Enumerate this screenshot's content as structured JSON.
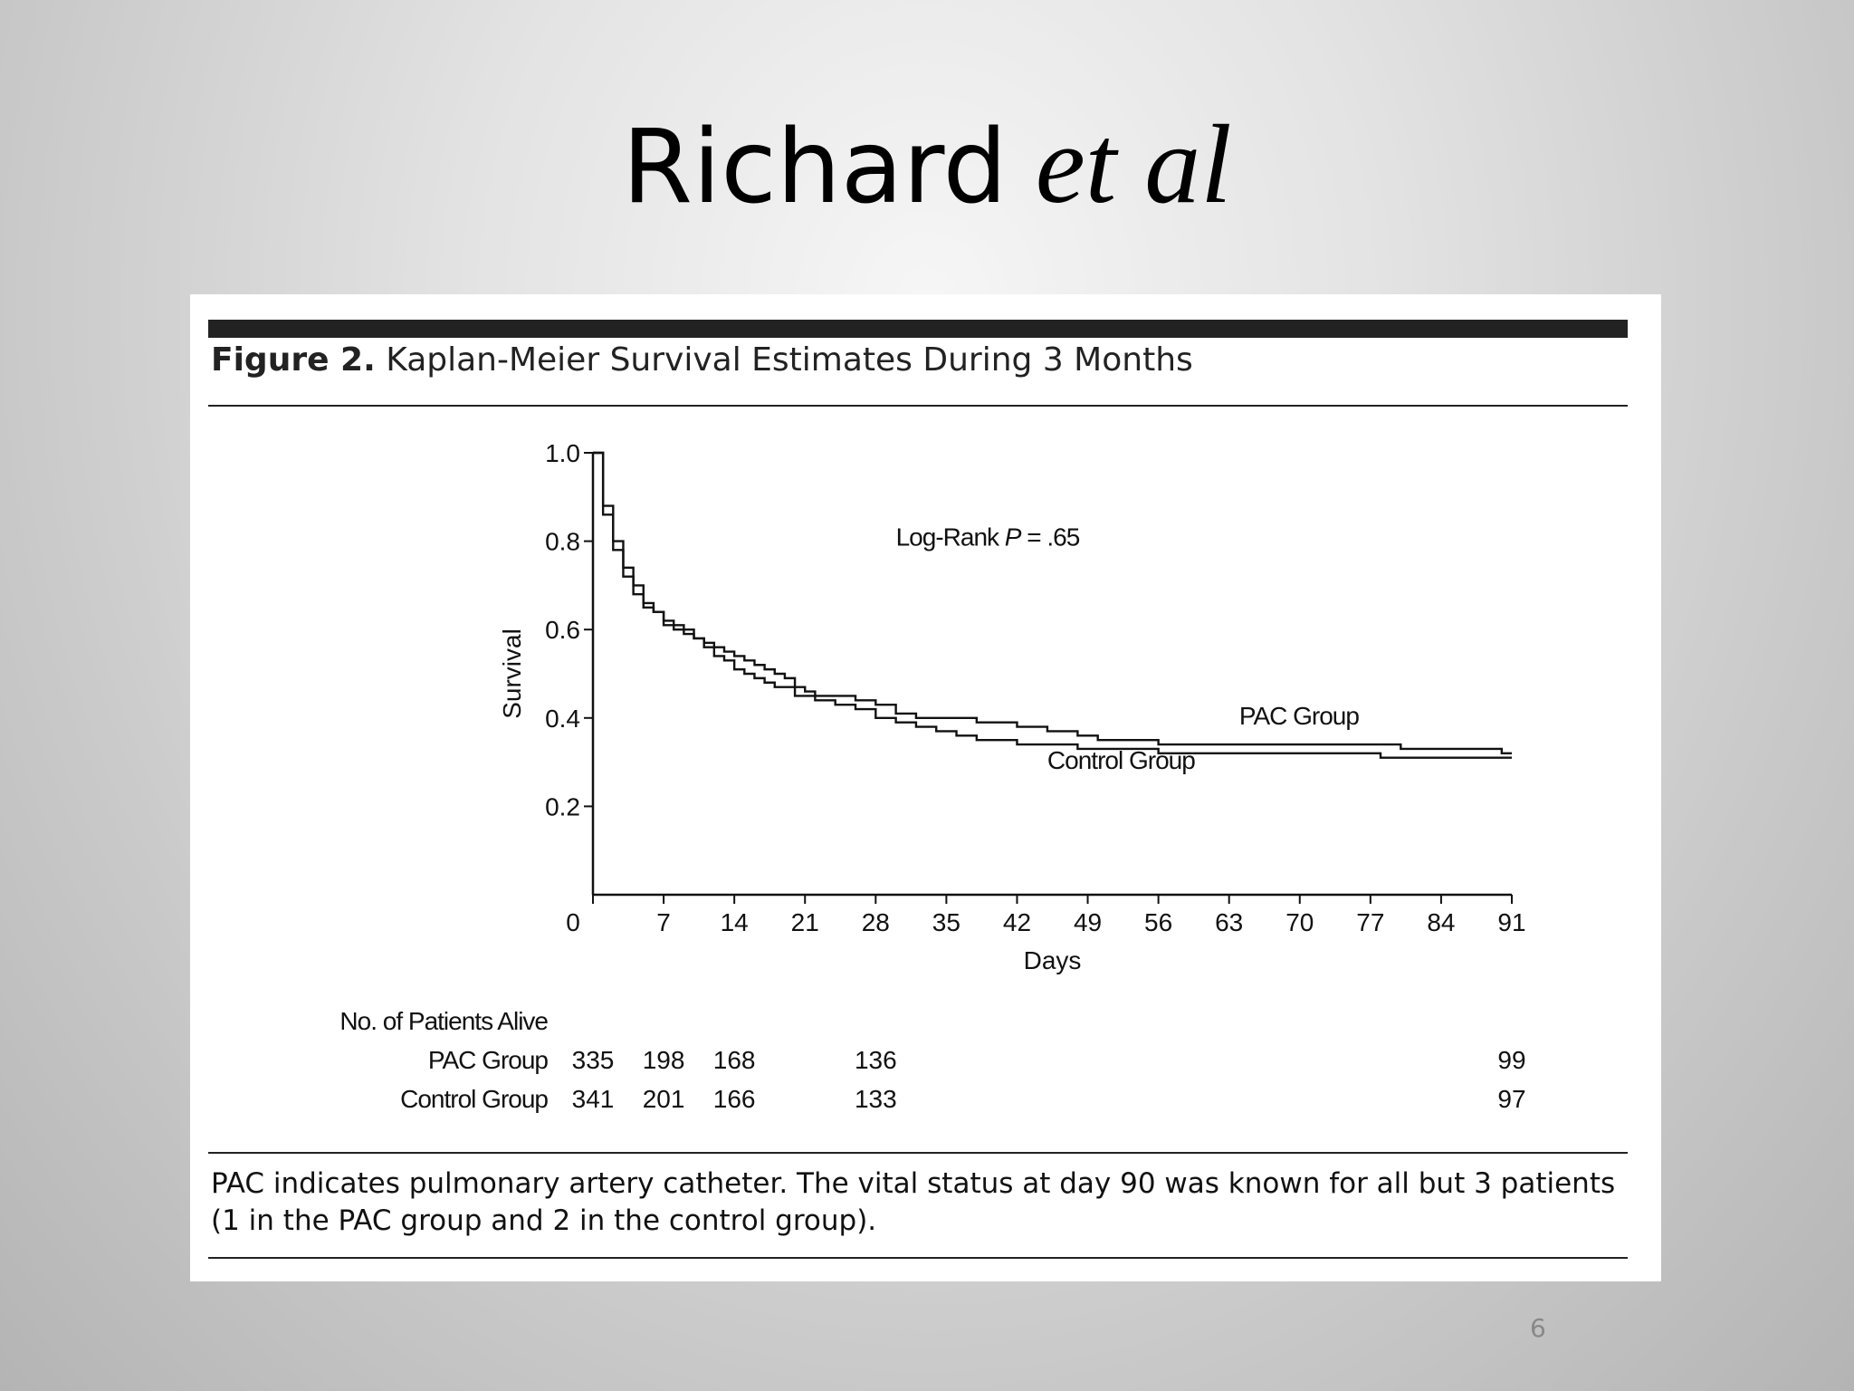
{
  "slide": {
    "title_main": "Richard",
    "title_italic": "et al",
    "page_number": "6"
  },
  "figure": {
    "caption_label": "Figure 2.",
    "caption_text": "Kaplan-Meier Survival Estimates During 3 Months",
    "footnote": "PAC indicates pulmonary artery catheter. The vital status at day 90 was known for all but 3 patients (1 in the PAC group and 2 in the control group)."
  },
  "chart_data": {
    "type": "line",
    "step": true,
    "title": "Kaplan-Meier Survival Estimates During 3 Months",
    "xlabel": "Days",
    "ylabel": "Survival",
    "xlim": [
      0,
      91
    ],
    "ylim": [
      0,
      1.0
    ],
    "x_ticks": [
      0,
      7,
      14,
      21,
      28,
      35,
      42,
      49,
      56,
      63,
      70,
      77,
      84,
      91
    ],
    "y_ticks": [
      0.2,
      0.4,
      0.6,
      0.8,
      1.0
    ],
    "y_tick_labels": [
      "0.2",
      "0.4",
      "0.6",
      "0.8",
      "1.0"
    ],
    "grid": false,
    "annotation": {
      "prefix": "Log-Rank ",
      "italic": "P",
      "suffix": " = .65",
      "x": 30,
      "y": 0.79
    },
    "series": [
      {
        "name": "PAC Group",
        "label_pos": {
          "x": 64,
          "y": 0.385
        },
        "x": [
          0,
          1,
          2,
          3,
          4,
          5,
          6,
          7,
          8,
          9,
          10,
          11,
          12,
          13,
          14,
          15,
          16,
          17,
          18,
          19,
          20,
          21,
          22,
          24,
          26,
          28,
          30,
          32,
          35,
          38,
          40,
          42,
          45,
          48,
          50,
          53,
          56,
          60,
          65,
          70,
          75,
          80,
          83,
          86,
          90,
          91
        ],
        "y": [
          1.0,
          0.88,
          0.8,
          0.74,
          0.7,
          0.66,
          0.64,
          0.62,
          0.61,
          0.6,
          0.58,
          0.57,
          0.56,
          0.55,
          0.54,
          0.53,
          0.52,
          0.51,
          0.5,
          0.49,
          0.47,
          0.46,
          0.45,
          0.45,
          0.44,
          0.43,
          0.41,
          0.4,
          0.4,
          0.39,
          0.39,
          0.38,
          0.37,
          0.36,
          0.35,
          0.35,
          0.34,
          0.34,
          0.34,
          0.34,
          0.34,
          0.33,
          0.33,
          0.33,
          0.32,
          0.32
        ]
      },
      {
        "name": "Control Group",
        "label_pos": {
          "x": 45,
          "y": 0.285
        },
        "x": [
          0,
          1,
          2,
          3,
          4,
          5,
          6,
          7,
          8,
          9,
          10,
          11,
          12,
          13,
          14,
          15,
          16,
          17,
          18,
          20,
          22,
          24,
          26,
          28,
          30,
          32,
          34,
          36,
          38,
          40,
          42,
          45,
          48,
          50,
          53,
          56,
          60,
          65,
          70,
          75,
          78,
          84,
          90,
          91
        ],
        "y": [
          1.0,
          0.86,
          0.78,
          0.72,
          0.68,
          0.65,
          0.64,
          0.61,
          0.6,
          0.59,
          0.58,
          0.56,
          0.54,
          0.53,
          0.51,
          0.5,
          0.49,
          0.48,
          0.47,
          0.45,
          0.44,
          0.43,
          0.42,
          0.4,
          0.39,
          0.38,
          0.37,
          0.36,
          0.35,
          0.35,
          0.34,
          0.34,
          0.33,
          0.33,
          0.33,
          0.32,
          0.32,
          0.32,
          0.32,
          0.32,
          0.31,
          0.31,
          0.31,
          0.31
        ]
      }
    ],
    "at_risk": {
      "heading": "No. of Patients Alive",
      "days": [
        0,
        7,
        14,
        28,
        91
      ],
      "rows": [
        {
          "group": "PAC Group",
          "values": [
            "335",
            "198",
            "168",
            "136",
            "99"
          ]
        },
        {
          "group": "Control Group",
          "values": [
            "341",
            "201",
            "166",
            "133",
            "97"
          ]
        }
      ]
    }
  }
}
